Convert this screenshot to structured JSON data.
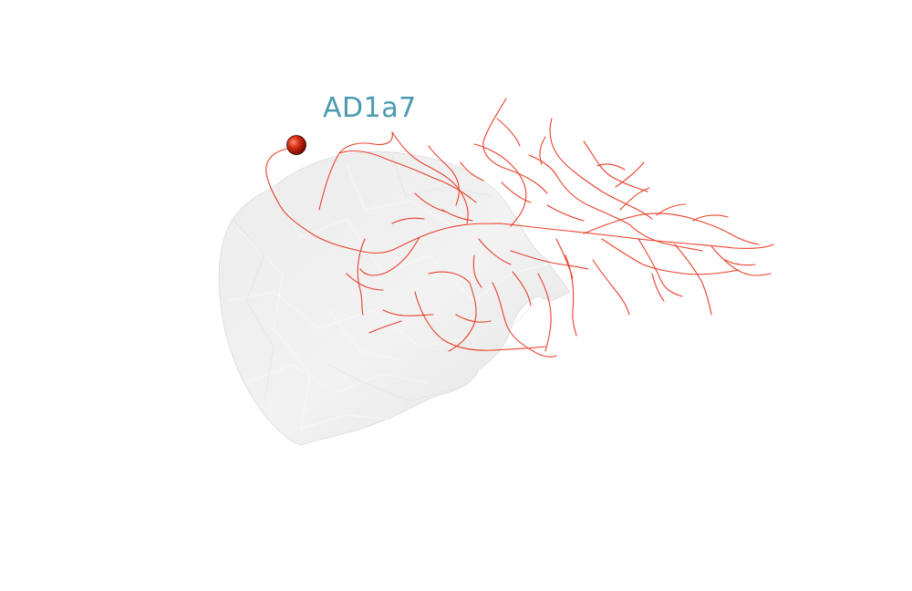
{
  "label": {
    "text": "AD1a7",
    "color": "#4a9bb0"
  },
  "colors": {
    "background": "#ffffff",
    "neuron": "#e8402a",
    "soma": "#c81e0a",
    "mesh_fill": "#e9e9e9",
    "mesh_edge": "#f7f7f7"
  },
  "objects": {
    "mesh": "brain-neuropil-mesh",
    "neuron": "neuron-skeleton",
    "soma": "soma-sphere"
  }
}
